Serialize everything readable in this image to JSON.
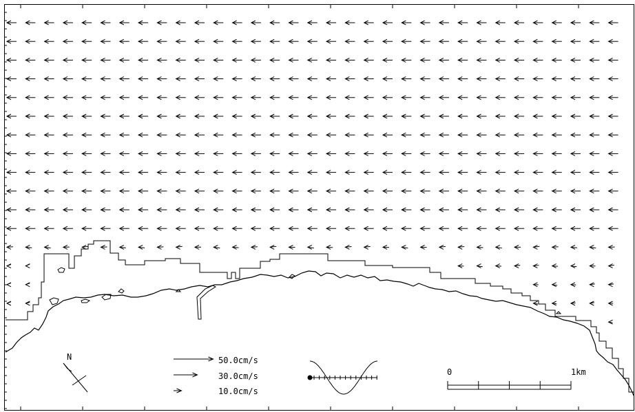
{
  "map": {
    "north_label": "N",
    "flow": "westward (leftward) coastal current field",
    "legend": {
      "vectors": [
        {
          "label": "50.0cm/s",
          "speed": 50.0
        },
        {
          "label": "30.0cm/s",
          "speed": 30.0
        },
        {
          "label": "10.0cm/s",
          "speed": 10.0
        }
      ],
      "tide_phase_marker": "tide-phase-icon"
    },
    "scale_bar": {
      "start_label": "0",
      "end_label": "1km"
    }
  },
  "colors": {
    "ink": "#000000",
    "background": "#ffffff"
  }
}
